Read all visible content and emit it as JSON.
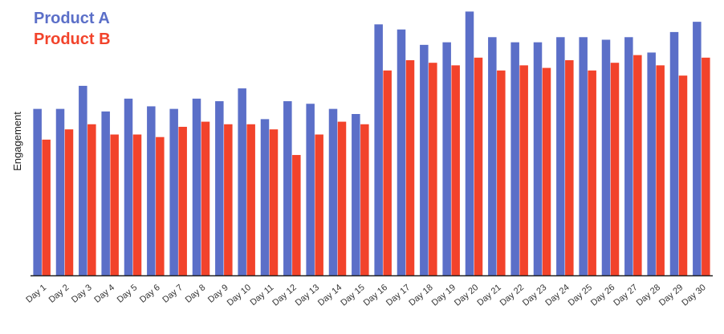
{
  "colors": {
    "product_a": "#5b6fc8",
    "product_b": "#f2432b",
    "axis": "#222222"
  },
  "chart_data": {
    "type": "bar",
    "title": "",
    "xlabel": "",
    "ylabel": "Engagement",
    "ylim": [
      0,
      105
    ],
    "grid": false,
    "legend": "top-left",
    "categories": [
      "Day 1",
      "Day 2",
      "Day 3",
      "Day 4",
      "Day 5",
      "Day 6",
      "Day 7",
      "Day 8",
      "Day 9",
      "Day 10",
      "Day 11",
      "Day 12",
      "Day 13",
      "Day 14",
      "Day 15",
      "Day 16",
      "Day 17",
      "Day 18",
      "Day 19",
      "Day 20",
      "Day 21",
      "Day 22",
      "Day 23",
      "Day 24",
      "Day 25",
      "Day 26",
      "Day 27",
      "Day 28",
      "Day 29",
      "Day 30"
    ],
    "series": [
      {
        "name": "Product A",
        "values": [
          65,
          65,
          74,
          64,
          69,
          66,
          65,
          69,
          68,
          73,
          61,
          68,
          67,
          65,
          63,
          98,
          96,
          90,
          91,
          103,
          93,
          91,
          91,
          93,
          93,
          92,
          93,
          87,
          95,
          99
        ]
      },
      {
        "name": "Product B",
        "values": [
          53,
          57,
          59,
          55,
          55,
          54,
          58,
          60,
          59,
          59,
          57,
          47,
          55,
          60,
          59,
          80,
          84,
          83,
          82,
          85,
          80,
          82,
          81,
          84,
          80,
          83,
          86,
          82,
          78,
          85
        ]
      }
    ]
  }
}
